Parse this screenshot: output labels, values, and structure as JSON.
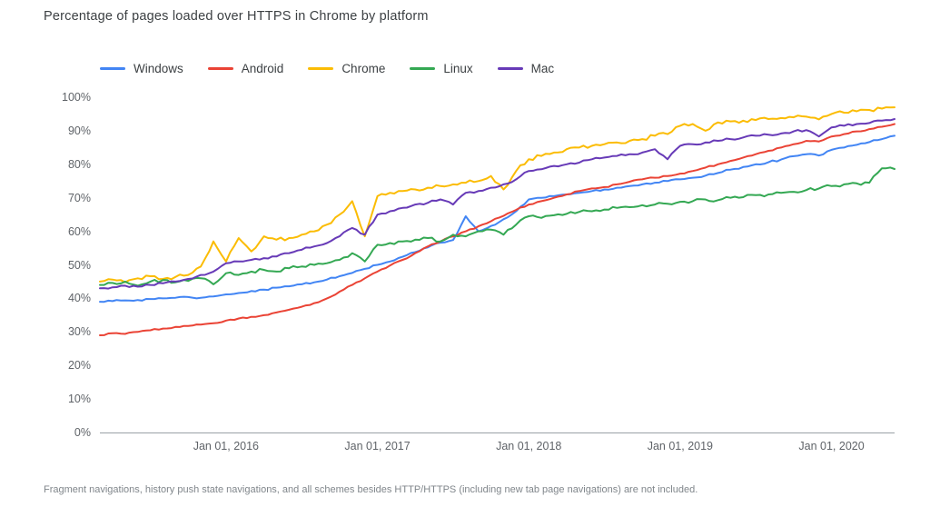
{
  "title": "Percentage of pages loaded over HTTPS in Chrome by platform",
  "footnote": "Fragment navigations, history push state navigations, and all schemes besides HTTP/HTTPS (including new tab page navigations) are not included.",
  "colors": {
    "background": "#ffffff",
    "title_text": "#3c4043",
    "axis_text": "#5f6368",
    "footnote_text": "#80868b",
    "axis_line": "#9aa0a6"
  },
  "chart_data": {
    "type": "line",
    "title": "Percentage of pages loaded over HTTPS in Chrome by platform",
    "xlabel": "",
    "ylabel": "",
    "ylim": [
      0,
      100
    ],
    "grid": false,
    "legend_position": "top",
    "y_ticks": [
      "0%",
      "10%",
      "20%",
      "30%",
      "40%",
      "50%",
      "60%",
      "70%",
      "80%",
      "90%",
      "100%"
    ],
    "x_ticks": [
      {
        "label": "Jan 01, 2016",
        "month_index": 10
      },
      {
        "label": "Jan 01, 2017",
        "month_index": 22
      },
      {
        "label": "Jan 01, 2018",
        "month_index": 34
      },
      {
        "label": "Jan 01, 2019",
        "month_index": 46
      },
      {
        "label": "Jan 01, 2020",
        "month_index": 58
      }
    ],
    "x": [
      "2015-03",
      "2015-04",
      "2015-05",
      "2015-06",
      "2015-07",
      "2015-08",
      "2015-09",
      "2015-10",
      "2015-11",
      "2015-12",
      "2016-01",
      "2016-02",
      "2016-03",
      "2016-04",
      "2016-05",
      "2016-06",
      "2016-07",
      "2016-08",
      "2016-09",
      "2016-10",
      "2016-11",
      "2016-12",
      "2017-01",
      "2017-02",
      "2017-03",
      "2017-04",
      "2017-05",
      "2017-06",
      "2017-07",
      "2017-08",
      "2017-09",
      "2017-10",
      "2017-11",
      "2017-12",
      "2018-01",
      "2018-02",
      "2018-03",
      "2018-04",
      "2018-05",
      "2018-06",
      "2018-07",
      "2018-08",
      "2018-09",
      "2018-10",
      "2018-11",
      "2018-12",
      "2019-01",
      "2019-02",
      "2019-03",
      "2019-04",
      "2019-05",
      "2019-06",
      "2019-07",
      "2019-08",
      "2019-09",
      "2019-10",
      "2019-11",
      "2019-12",
      "2020-01",
      "2020-02",
      "2020-03",
      "2020-04",
      "2020-05",
      "2020-06"
    ],
    "series": [
      {
        "name": "Windows",
        "color": "#4285F4",
        "values": [
          39.0,
          39.2,
          39.4,
          39.5,
          39.8,
          40.0,
          40.2,
          40.4,
          40.2,
          40.6,
          41.2,
          41.6,
          42.2,
          42.6,
          43.2,
          43.6,
          44.2,
          44.8,
          45.6,
          46.6,
          47.6,
          48.8,
          50.0,
          51.0,
          52.4,
          53.8,
          55.2,
          56.6,
          57.4,
          64.5,
          60.0,
          61.6,
          63.6,
          66.0,
          69.5,
          70.0,
          70.5,
          71.0,
          71.5,
          72.0,
          72.5,
          73.0,
          73.5,
          74.0,
          74.5,
          75.0,
          75.5,
          76.0,
          76.6,
          77.4,
          78.4,
          79.2,
          80.0,
          80.6,
          81.4,
          82.4,
          83.0,
          82.6,
          84.3,
          85.0,
          85.8,
          86.6,
          87.5,
          88.5
        ]
      },
      {
        "name": "Android",
        "color": "#EA4335",
        "values": [
          29.0,
          29.6,
          29.4,
          30.0,
          30.5,
          31.0,
          31.5,
          31.8,
          32.2,
          32.6,
          33.4,
          34.0,
          34.5,
          35.0,
          35.8,
          36.6,
          37.5,
          38.6,
          40.0,
          42.0,
          44.0,
          46.0,
          48.0,
          49.8,
          51.5,
          53.5,
          55.5,
          57.0,
          58.5,
          60.0,
          61.5,
          63.0,
          64.6,
          66.4,
          68.0,
          69.0,
          70.0,
          71.0,
          72.0,
          72.8,
          73.2,
          74.0,
          74.8,
          75.5,
          76.0,
          76.5,
          77.2,
          78.0,
          79.0,
          80.0,
          81.0,
          82.0,
          83.0,
          84.0,
          85.0,
          86.0,
          87.0,
          86.8,
          88.3,
          89.0,
          89.8,
          90.5,
          91.2,
          92.0
        ]
      },
      {
        "name": "Chrome",
        "color": "#FBBC04",
        "values": [
          45.0,
          45.6,
          44.8,
          46.0,
          46.6,
          45.8,
          46.4,
          47.0,
          49.5,
          57.0,
          51.0,
          58.0,
          54.0,
          58.5,
          57.5,
          58.0,
          59.0,
          60.0,
          62.0,
          65.0,
          69.0,
          58.5,
          70.5,
          71.5,
          72.0,
          72.5,
          73.0,
          73.5,
          74.0,
          74.5,
          75.0,
          76.5,
          72.5,
          78.0,
          81.5,
          82.5,
          83.5,
          84.5,
          85.0,
          85.5,
          86.0,
          86.5,
          87.0,
          87.5,
          88.5,
          89.0,
          91.5,
          92.0,
          90.0,
          92.5,
          92.8,
          93.0,
          93.2,
          93.5,
          93.8,
          94.0,
          94.2,
          93.4,
          95.0,
          95.4,
          95.8,
          96.2,
          96.6,
          97.0
        ]
      },
      {
        "name": "Linux",
        "color": "#34A853",
        "values": [
          44.0,
          44.6,
          45.0,
          43.8,
          45.0,
          45.5,
          44.8,
          45.2,
          46.0,
          44.2,
          47.5,
          47.0,
          48.0,
          48.5,
          48.0,
          49.0,
          49.5,
          50.0,
          50.5,
          51.5,
          53.5,
          51.0,
          56.0,
          56.5,
          57.0,
          57.5,
          58.0,
          57.0,
          59.0,
          58.5,
          60.0,
          60.5,
          59.0,
          62.0,
          64.5,
          64.0,
          64.8,
          65.2,
          65.8,
          66.0,
          66.5,
          67.0,
          67.2,
          67.8,
          68.0,
          68.2,
          68.8,
          69.0,
          69.5,
          69.3,
          70.0,
          70.2,
          70.8,
          71.0,
          71.5,
          71.8,
          72.3,
          72.8,
          73.5,
          74.0,
          74.3,
          74.5,
          78.8,
          78.6
        ]
      },
      {
        "name": "Mac",
        "color": "#673AB7",
        "values": [
          43.0,
          43.3,
          43.8,
          43.5,
          44.0,
          44.5,
          45.0,
          45.8,
          47.0,
          48.0,
          50.5,
          51.0,
          51.5,
          52.0,
          52.5,
          53.5,
          54.5,
          55.5,
          56.5,
          58.5,
          61.0,
          59.0,
          65.0,
          66.0,
          67.0,
          68.0,
          68.5,
          69.5,
          68.0,
          71.5,
          72.0,
          73.0,
          74.0,
          75.5,
          78.0,
          78.5,
          79.5,
          80.0,
          80.5,
          81.5,
          82.0,
          82.5,
          83.0,
          83.5,
          84.5,
          81.5,
          85.5,
          86.0,
          86.5,
          87.0,
          87.5,
          88.0,
          88.5,
          88.8,
          89.2,
          89.8,
          90.2,
          88.3,
          91.0,
          91.5,
          92.0,
          92.3,
          93.0,
          93.5
        ]
      }
    ]
  }
}
